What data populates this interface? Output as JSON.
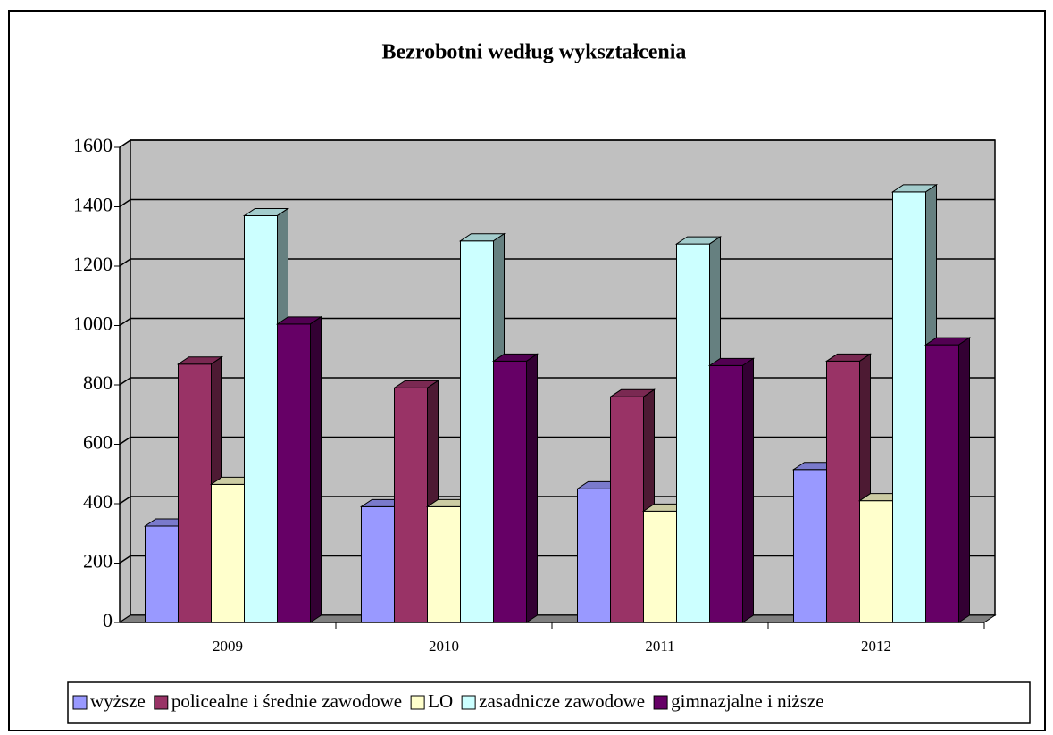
{
  "chart_data": {
    "type": "bar3d",
    "title": "Bezrobotni według wykształcenia",
    "categories": [
      "2009",
      "2010",
      "2011",
      "2012"
    ],
    "series": [
      {
        "name": "wyższe",
        "color": "#9999ff",
        "values": [
          325,
          390,
          450,
          515
        ]
      },
      {
        "name": "policealne i średnie zawodowe",
        "color": "#993366",
        "values": [
          870,
          790,
          760,
          880
        ]
      },
      {
        "name": "LO",
        "color": "#ffffcc",
        "values": [
          465,
          390,
          375,
          410
        ]
      },
      {
        "name": "zasadnicze zawodowe",
        "color": "#ccffff",
        "values": [
          1370,
          1285,
          1275,
          1450
        ]
      },
      {
        "name": "gimnazjalne i niższe",
        "color": "#660066",
        "values": [
          1005,
          880,
          865,
          935
        ]
      }
    ],
    "ylim": [
      0,
      1600
    ],
    "yticks": [
      0,
      200,
      400,
      600,
      800,
      1000,
      1200,
      1400,
      1600
    ],
    "grid": true,
    "legend": "bottom"
  }
}
